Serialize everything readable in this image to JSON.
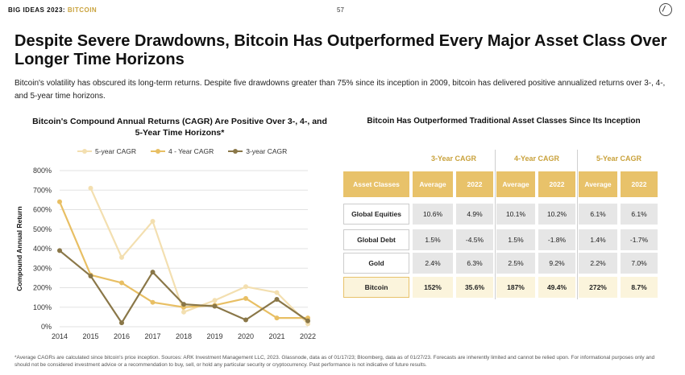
{
  "header": {
    "brand_a": "BIG IDEAS 2023: ",
    "brand_b": "BITCOIN",
    "page": "57"
  },
  "title": "Despite Severe Drawdowns, Bitcoin Has Outperformed Every Major Asset Class Over Longer Time Horizons",
  "subtitle": "Bitcoin's volatility has obscured its long-term returns. Despite five drawdowns greater than 75% since its inception in 2009, bitcoin has delivered positive annualized returns over 3-, 4-, and 5-year time horizons.",
  "chart_data": {
    "type": "line",
    "title": "Bitcoin's Compound Annual Returns (CAGR) Are Positive Over 3-, 4-, and 5-Year Time Horizons*",
    "ylabel": "Compound Annual Return",
    "xlabel": "",
    "x": [
      2014,
      2015,
      2016,
      2017,
      2018,
      2019,
      2020,
      2021,
      2022
    ],
    "ylim": [
      0,
      800
    ],
    "yticks": [
      "0%",
      "100%",
      "200%",
      "300%",
      "400%",
      "500%",
      "600%",
      "700%",
      "800%"
    ],
    "grid": true,
    "legend_position": "top",
    "series": [
      {
        "name": "5-year CAGR",
        "color": "#f3dfb0",
        "values": [
          null,
          710,
          355,
          540,
          75,
          135,
          205,
          175,
          15
        ]
      },
      {
        "name": "4 - Year CAGR",
        "color": "#e8bf64",
        "values": [
          640,
          265,
          225,
          125,
          100,
          110,
          145,
          45,
          45
        ]
      },
      {
        "name": "3-year CAGR",
        "color": "#8a7748",
        "values": [
          390,
          260,
          20,
          280,
          115,
          105,
          35,
          140,
          30
        ]
      }
    ]
  },
  "table": {
    "title": "Bitcoin Has Outperformed Traditional Asset Classes Since Its Inception",
    "groups": [
      "3-Year CAGR",
      "4-Year CAGR",
      "5-Year CAGR"
    ],
    "headers": [
      "Asset Classes",
      "Average",
      "2022",
      "Average",
      "2022",
      "Average",
      "2022"
    ],
    "rows": [
      {
        "label": "Global Equities",
        "values": [
          "10.6%",
          "4.9%",
          "10.1%",
          "10.2%",
          "6.1%",
          "6.1%"
        ]
      },
      {
        "label": "Global Debt",
        "values": [
          "1.5%",
          "-4.5%",
          "1.5%",
          "-1.8%",
          "1.4%",
          "-1.7%"
        ]
      },
      {
        "label": "Gold",
        "values": [
          "2.4%",
          "6.3%",
          "2.5%",
          "9.2%",
          "2.2%",
          "7.0%"
        ]
      },
      {
        "label": "Bitcoin",
        "values": [
          "152%",
          "35.6%",
          "187%",
          "49.4%",
          "272%",
          "8.7%"
        ]
      }
    ]
  },
  "footnote": "*Average CAGRs are calculated since bitcoin's price inception. Sources: ARK Investment Management LLC, 2023. Glassnode, data as of 01/17/23; Bloomberg, data as of 01/27/23. Forecasts are inherently limited and cannot be relied upon. For informational purposes only and should not be considered investment advice or a recommendation to buy, sell, or hold any particular security or cryptocurrency. Past performance is not indicative of future results."
}
